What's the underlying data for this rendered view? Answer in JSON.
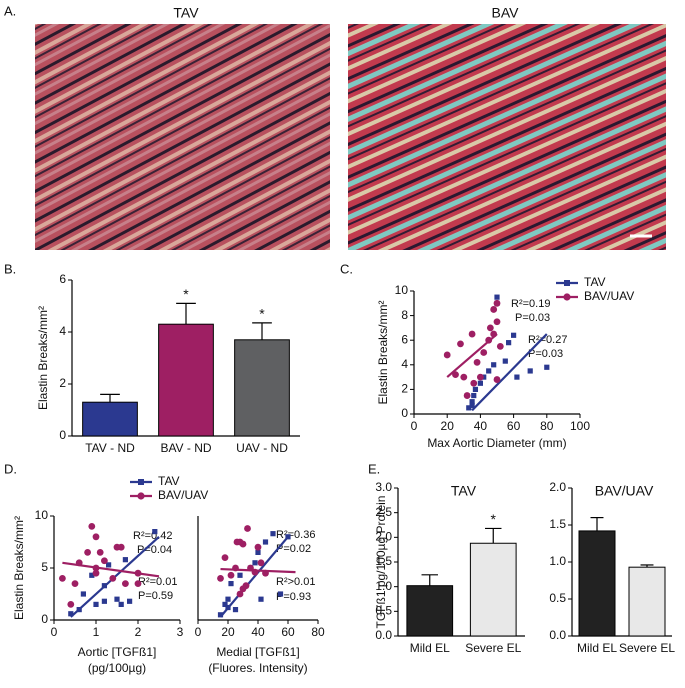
{
  "panel_labels": [
    "A.",
    "B.",
    "C.",
    "D.",
    "E."
  ],
  "images": [
    {
      "title": "TAV"
    },
    {
      "title": "BAV"
    }
  ],
  "chart_data": [
    {
      "type": "bar",
      "ylabel": "Elastin Breaks/mm²",
      "categories": [
        "TAV - ND",
        "BAV - ND",
        "UAV - ND"
      ],
      "values": [
        1.3,
        4.3,
        3.7
      ],
      "errors": [
        0.3,
        0.8,
        0.65
      ],
      "colors": [
        "#2b3990",
        "#9e1f63",
        "#5f6062"
      ],
      "markers": [
        null,
        "*",
        "*"
      ],
      "ylim": [
        0,
        6
      ],
      "yticks": [
        0,
        2,
        4,
        6
      ]
    },
    {
      "type": "scatter",
      "ylabel": "Elastin Breaks/mm²",
      "xlabel": "Max Aortic Diameter (mm)",
      "legend": "top-right",
      "xlim": [
        0,
        100
      ],
      "xticks": [
        0,
        20,
        40,
        60,
        80,
        100
      ],
      "ylim": [
        0,
        10
      ],
      "yticks": [
        0,
        2,
        4,
        6,
        8,
        10
      ],
      "annotations": [
        "R²=0.19",
        "P=0.03",
        "R²=0.27",
        "P=0.03"
      ],
      "series": [
        {
          "name": "TAV",
          "color": "#2b3990",
          "marker": "square",
          "x": [
            33,
            35,
            36,
            37,
            40,
            42,
            45,
            48,
            50,
            50,
            55,
            57,
            60,
            62,
            70,
            80,
            35
          ],
          "values": [
            0.5,
            1,
            1.5,
            2,
            2.5,
            3,
            3.5,
            4,
            9.5,
            9,
            4.3,
            5.8,
            6.4,
            3,
            3.5,
            3.8,
            0.7
          ],
          "fit": {
            "x": [
              35,
              80
            ],
            "values": [
              0.3,
              6.5
            ]
          }
        },
        {
          "name": "BAV/UAV",
          "color": "#9e1f63",
          "marker": "circle",
          "x": [
            20,
            25,
            28,
            30,
            32,
            35,
            36,
            38,
            40,
            42,
            45,
            46,
            48,
            50,
            50,
            50,
            52,
            48
          ],
          "values": [
            4.8,
            3.2,
            5.7,
            3,
            1.5,
            6.5,
            2.5,
            4.2,
            3,
            5,
            6,
            7,
            8.5,
            7.5,
            9,
            2.8,
            5.5,
            6.5
          ],
          "fit": {
            "x": [
              20,
              50
            ],
            "values": [
              3,
              6.5
            ]
          }
        }
      ]
    },
    {
      "type": "scatter",
      "ylabel": "Elastin Breaks/mm²",
      "xlabel": [
        "Aortic [TGFß1]",
        "(pg/100µg)"
      ],
      "legend": "top",
      "xlim": [
        0,
        3
      ],
      "xticks": [
        0,
        1,
        2,
        3
      ],
      "ylim": [
        0,
        10
      ],
      "yticks": [
        0,
        5,
        10
      ],
      "annotations": [
        "R²=0.42",
        "P=0.04",
        "R²=0.01",
        "P=0.59"
      ],
      "series": [
        {
          "name": "TAV",
          "color": "#2b3990",
          "marker": "square",
          "x": [
            0.4,
            0.6,
            0.7,
            0.9,
            1.0,
            1.2,
            1.3,
            1.5,
            1.6,
            1.7,
            1.8,
            2.4,
            1.2
          ],
          "values": [
            0.6,
            1,
            2.5,
            4.3,
            1.5,
            3.3,
            5.3,
            2,
            1.5,
            5.8,
            1.8,
            8.5,
            1.8
          ],
          "fit": {
            "x": [
              0.4,
              2.5
            ],
            "values": [
              0.3,
              8
            ]
          }
        },
        {
          "name": "BAV/UAV",
          "color": "#9e1f63",
          "marker": "circle",
          "x": [
            0.2,
            0.4,
            0.5,
            0.6,
            0.8,
            0.9,
            1.0,
            1.0,
            1.1,
            1.2,
            1.4,
            1.5,
            1.6,
            1.7,
            2.0,
            2.0,
            1.0
          ],
          "values": [
            4,
            1.5,
            3.5,
            5.5,
            6.5,
            9,
            8,
            5,
            6.5,
            5.7,
            4,
            7,
            7,
            3.5,
            3.5,
            4.5,
            4.5
          ],
          "fit": {
            "x": [
              0.2,
              2.5
            ],
            "values": [
              5.5,
              4.2
            ]
          }
        }
      ]
    },
    {
      "type": "scatter",
      "xlabel": [
        "Medial [TGFß1]",
        "(Fluores. Intensity)"
      ],
      "xlim": [
        0,
        80
      ],
      "xticks": [
        0,
        20,
        40,
        60,
        80
      ],
      "ylim": [
        0,
        10
      ],
      "annotations": [
        "R²=0.36",
        "P=0.02",
        "R²>0.01",
        "P=0.93"
      ],
      "series": [
        {
          "color": "#2b3990",
          "marker": "square",
          "x": [
            15,
            18,
            20,
            22,
            25,
            28,
            35,
            38,
            40,
            42,
            45,
            50,
            55,
            60,
            20
          ],
          "values": [
            0.5,
            1.5,
            2,
            3.5,
            1,
            4.3,
            5,
            5.5,
            6.5,
            2,
            7.5,
            8.3,
            2.5,
            8,
            1.2
          ],
          "fit": {
            "x": [
              15,
              60
            ],
            "values": [
              0.3,
              8
            ]
          }
        },
        {
          "color": "#9e1f63",
          "marker": "circle",
          "x": [
            15,
            18,
            22,
            25,
            26,
            28,
            30,
            32,
            33,
            35,
            38,
            40,
            42,
            30,
            28,
            45
          ],
          "values": [
            4,
            6,
            4.3,
            5,
            7.5,
            7.5,
            7.3,
            3.3,
            8.8,
            5,
            4.6,
            7,
            5.5,
            3,
            2.5,
            4.5
          ],
          "fit": {
            "x": [
              15,
              65
            ],
            "values": [
              4.9,
              4.6
            ]
          }
        }
      ]
    },
    {
      "type": "bar",
      "title": "TAV",
      "ylabel": "TGFß1 pg/100µg Protein",
      "categories": [
        "Mild EL",
        "Severe EL"
      ],
      "values": [
        1.02,
        1.88
      ],
      "errors": [
        0.22,
        0.3
      ],
      "colors": [
        "#222222",
        "#e8e8e8"
      ],
      "markers": [
        null,
        "*"
      ],
      "ylim": [
        0,
        3
      ],
      "yticks": [
        {
          "value": 0,
          "label": "0.0"
        },
        {
          "value": 0.5,
          "label": "0.5"
        },
        {
          "value": 1,
          "label": "1.0"
        },
        {
          "value": 1.5,
          "label": "1.5"
        },
        {
          "value": 2,
          "label": "2.0"
        },
        {
          "value": 2.5,
          "label": "2.5"
        },
        {
          "value": 3,
          "label": "3.0"
        }
      ]
    },
    {
      "type": "bar",
      "title": "BAV/UAV",
      "categories": [
        "Mild EL",
        "Severe EL"
      ],
      "values": [
        1.42,
        0.93
      ],
      "errors": [
        0.18,
        0.03
      ],
      "colors": [
        "#222222",
        "#e8e8e8"
      ],
      "ylim": [
        0,
        2
      ],
      "yticks": [
        {
          "value": 0,
          "label": "0.0"
        },
        {
          "value": 0.5,
          "label": "0.5"
        },
        {
          "value": 1,
          "label": "1.0"
        },
        {
          "value": 1.5,
          "label": "1.5"
        },
        {
          "value": 2,
          "label": "2.0"
        }
      ]
    }
  ]
}
